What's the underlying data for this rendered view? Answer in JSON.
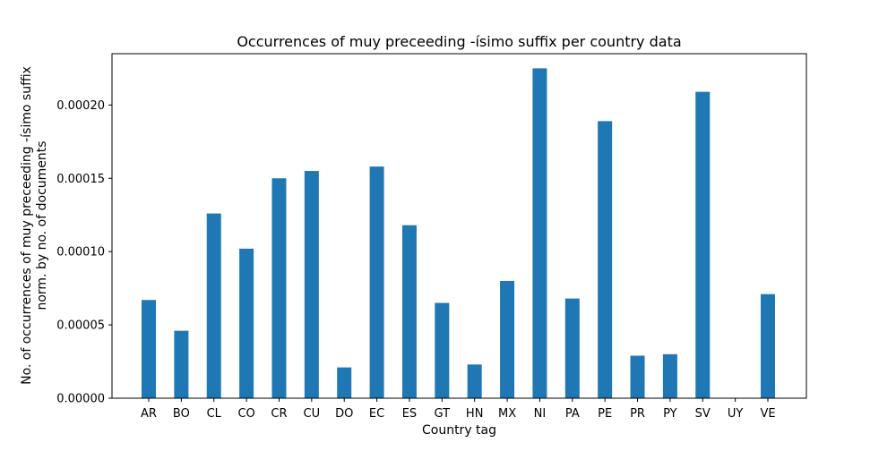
{
  "chart_data": {
    "type": "bar",
    "title": "Occurrences of muy preceeding -ísimo suffix per country data",
    "xlabel": "Country tag",
    "ylabel_lines": [
      "No. of occurrences of muy preceeding -ísimo suffix",
      "norm. by no. of documents"
    ],
    "categories": [
      "AR",
      "BO",
      "CL",
      "CO",
      "CR",
      "CU",
      "DO",
      "EC",
      "ES",
      "GT",
      "HN",
      "MX",
      "NI",
      "PA",
      "PE",
      "PR",
      "PY",
      "SV",
      "UY",
      "VE"
    ],
    "values": [
      6.7e-05,
      4.6e-05,
      0.000126,
      0.000102,
      0.00015,
      0.000155,
      2.1e-05,
      0.000158,
      0.000118,
      6.5e-05,
      2.3e-05,
      8e-05,
      0.000225,
      6.8e-05,
      0.000189,
      2.9e-05,
      3e-05,
      0.000209,
      0.0,
      7.1e-05
    ],
    "ylim": [
      0,
      0.000235
    ],
    "yticks": [
      0,
      5e-05,
      0.0001,
      0.00015,
      0.0002
    ],
    "ytick_labels": [
      "0.00000",
      "0.00005",
      "0.00010",
      "0.00015",
      "0.00020"
    ],
    "bar_color": "#1f77b4",
    "grid": false
  }
}
